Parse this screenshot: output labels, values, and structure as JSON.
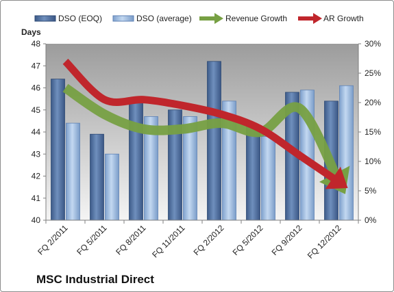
{
  "chart_data": {
    "type": "bar",
    "company": "MSC Industrial Direct",
    "categories": [
      "FQ 2/2011",
      "FQ 5/2011",
      "FQ 8/2011",
      "FQ 11/2011",
      "FQ 2/2012",
      "FQ 5/2012",
      "FQ 9/2012",
      "FQ 12/2012"
    ],
    "series": [
      {
        "name": "DSO (EOQ)",
        "type": "bar",
        "axis": "left",
        "color": "#4f6f9f",
        "values": [
          46.4,
          43.9,
          45.5,
          45.0,
          47.2,
          44.3,
          45.8,
          45.4
        ]
      },
      {
        "name": "DSO (average)",
        "type": "bar",
        "axis": "left",
        "color": "#9ab8e0",
        "values": [
          44.4,
          43.0,
          44.7,
          44.7,
          45.4,
          43.8,
          45.9,
          46.1
        ]
      },
      {
        "name": "Revenue Growth",
        "type": "line",
        "axis": "right",
        "color": "#77a043",
        "values": [
          22.5,
          18.0,
          15.5,
          15.5,
          16.5,
          15.0,
          19.0,
          6.5
        ]
      },
      {
        "name": "AR Growth",
        "type": "line",
        "axis": "right",
        "color": "#c0262c",
        "values": [
          27.0,
          20.5,
          20.5,
          19.5,
          18.0,
          15.5,
          11.0,
          6.5
        ]
      }
    ],
    "ylabel": "Days",
    "ylim": [
      40,
      48
    ],
    "yticks": [
      "40",
      "41",
      "42",
      "43",
      "44",
      "45",
      "46",
      "47",
      "48"
    ],
    "y2lim": [
      0,
      30
    ],
    "y2ticks": [
      "0%",
      "5%",
      "10%",
      "15%",
      "20%",
      "25%",
      "30%"
    ],
    "legend_position": "top",
    "grid": false
  }
}
